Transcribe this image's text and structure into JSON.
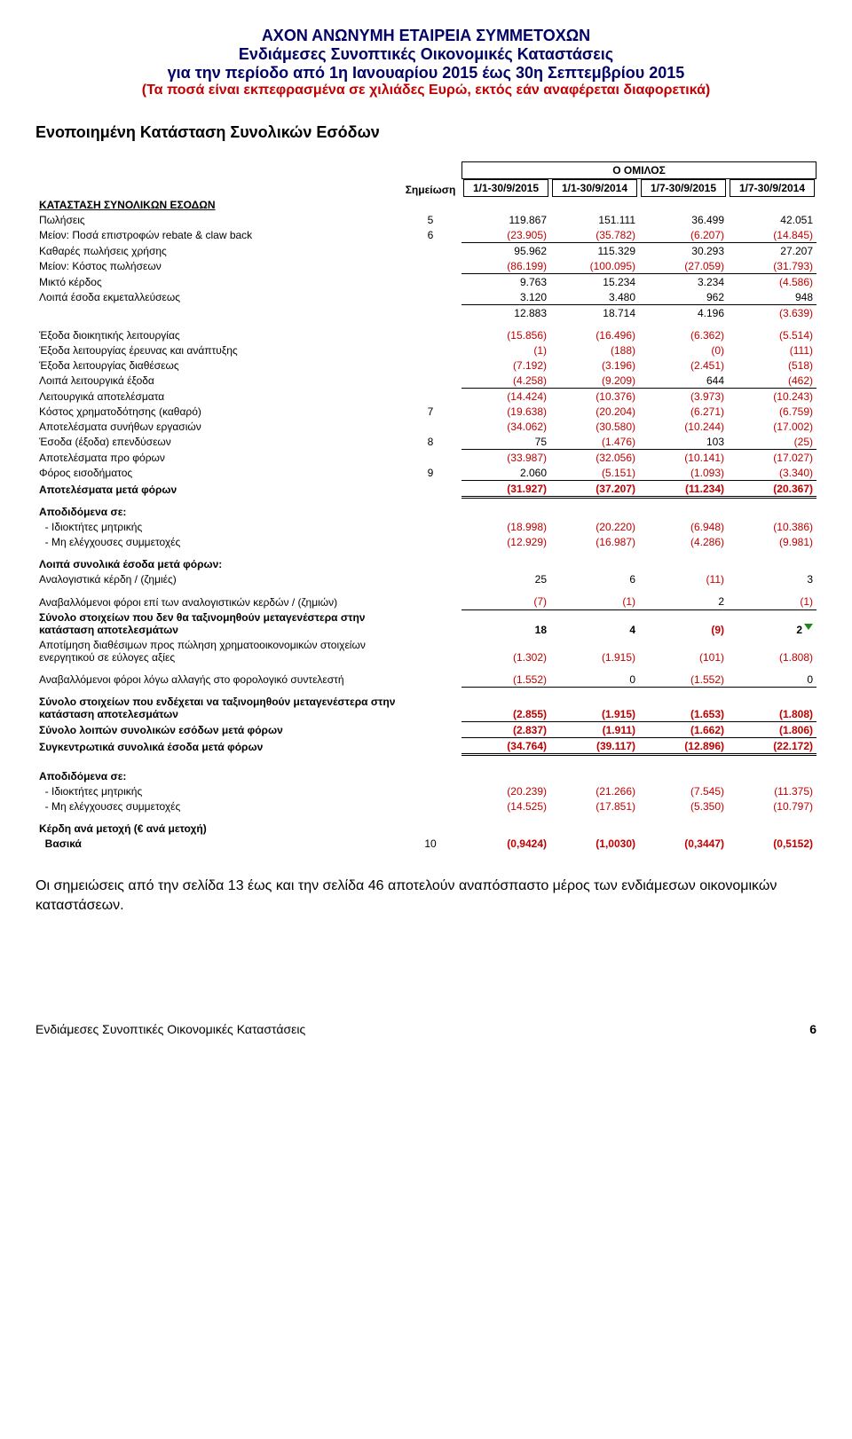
{
  "header": {
    "line1": "ΑΧΟΝ ΑΝΩΝΥΜΗ ΕΤΑΙΡΕΙΑ ΣΥΜΜΕΤΟΧΩΝ",
    "line2": "Ενδιάμεσες Συνοπτικές Οικονομικές Καταστάσεις",
    "line3": "για την περίοδο από 1η Ιανουαρίου 2015 έως 30η Σεπτεμβρίου 2015",
    "line4": "(Τα ποσά είναι εκπεφρασμένα σε χιλιάδες Ευρώ, εκτός εάν αναφέρεται διαφορετικά)"
  },
  "section_title": "Ενοποιημένη Κατάσταση Συνολικών Εσόδων",
  "group_label": "Ο ΟΜΙΛΟΣ",
  "note_header": "Σημείωση",
  "periods": [
    "1/1-30/9/2015",
    "1/1-30/9/2014",
    "1/7-30/9/2015",
    "1/7-30/9/2014"
  ],
  "heading_row": {
    "label": "ΚΑΤΑΣΤΑΣΗ ΣΥΝΟΛΙΚΩΝ ΕΣΟΔΩΝ"
  },
  "rows": [
    {
      "label": "Πωλήσεις",
      "note": "5",
      "v": [
        "119.867",
        "151.111",
        "36.499",
        "42.051"
      ],
      "neg": [
        0,
        0,
        0,
        0
      ]
    },
    {
      "label": "Μείον: Ποσά επιστροφών rebate & claw back",
      "note": "6",
      "v": [
        "(23.905)",
        "(35.782)",
        "(6.207)",
        "(14.845)"
      ],
      "neg": [
        1,
        1,
        1,
        1
      ],
      "ul": "single"
    },
    {
      "label": "Καθαρές πωλήσεις χρήσης",
      "v": [
        "95.962",
        "115.329",
        "30.293",
        "27.207"
      ],
      "neg": [
        0,
        0,
        0,
        0
      ]
    },
    {
      "label": "Μείον: Κόστος πωλήσεων",
      "v": [
        "(86.199)",
        "(100.095)",
        "(27.059)",
        "(31.793)"
      ],
      "neg": [
        1,
        1,
        1,
        1
      ],
      "ul": "single"
    },
    {
      "label": "Μικτό κέρδος",
      "v": [
        "9.763",
        "15.234",
        "3.234",
        "(4.586)"
      ],
      "neg": [
        0,
        0,
        0,
        1
      ]
    },
    {
      "label": "Λοιπά έσοδα εκμεταλλεύσεως",
      "v": [
        "3.120",
        "3.480",
        "962",
        "948"
      ],
      "neg": [
        0,
        0,
        0,
        0
      ],
      "ul": "single"
    },
    {
      "label": "",
      "v": [
        "12.883",
        "18.714",
        "4.196",
        "(3.639)"
      ],
      "neg": [
        0,
        0,
        0,
        1
      ]
    },
    {
      "spacer": true
    },
    {
      "label": "Έξοδα διοικητικής λειτουργίας",
      "v": [
        "(15.856)",
        "(16.496)",
        "(6.362)",
        "(5.514)"
      ],
      "neg": [
        1,
        1,
        1,
        1
      ]
    },
    {
      "label": "Έξοδα λειτουργίας έρευνας και ανάπτυξης",
      "v": [
        "(1)",
        "(188)",
        "(0)",
        "(111)"
      ],
      "neg": [
        1,
        1,
        1,
        1
      ]
    },
    {
      "label": "Έξοδα λειτουργίας διαθέσεως",
      "v": [
        "(7.192)",
        "(3.196)",
        "(2.451)",
        "(518)"
      ],
      "neg": [
        1,
        1,
        1,
        1
      ]
    },
    {
      "label": "Λοιπά λειτουργικά έξοδα",
      "v": [
        "(4.258)",
        "(9.209)",
        "644",
        "(462)"
      ],
      "neg": [
        1,
        1,
        0,
        1
      ],
      "ul": "single"
    },
    {
      "label": "Λειτουργικά αποτελέσματα",
      "v": [
        "(14.424)",
        "(10.376)",
        "(3.973)",
        "(10.243)"
      ],
      "neg": [
        1,
        1,
        1,
        1
      ]
    },
    {
      "label": "Κόστος χρηματοδότησης (καθαρό)",
      "note": "7",
      "v": [
        "(19.638)",
        "(20.204)",
        "(6.271)",
        "(6.759)"
      ],
      "neg": [
        1,
        1,
        1,
        1
      ]
    },
    {
      "label": "Αποτελέσματα συνήθων εργασιών",
      "v": [
        "(34.062)",
        "(30.580)",
        "(10.244)",
        "(17.002)"
      ],
      "neg": [
        1,
        1,
        1,
        1
      ]
    },
    {
      "label": "Έσοδα (έξοδα) επενδύσεων",
      "note": "8",
      "v": [
        "75",
        "(1.476)",
        "103",
        "(25)"
      ],
      "neg": [
        0,
        1,
        0,
        1
      ],
      "ul": "single"
    },
    {
      "label": "Αποτελέσματα προ φόρων",
      "v": [
        "(33.987)",
        "(32.056)",
        "(10.141)",
        "(17.027)"
      ],
      "neg": [
        1,
        1,
        1,
        1
      ]
    },
    {
      "label": "Φόρος εισοδήματος",
      "note": "9",
      "v": [
        "2.060",
        "(5.151)",
        "(1.093)",
        "(3.340)"
      ],
      "neg": [
        0,
        1,
        1,
        1
      ],
      "ul": "single"
    },
    {
      "label": "Αποτελέσματα μετά φόρων",
      "bold": true,
      "v": [
        "(31.927)",
        "(37.207)",
        "(11.234)",
        "(20.367)"
      ],
      "neg": [
        1,
        1,
        1,
        1
      ],
      "ul": "total"
    },
    {
      "spacer": true
    },
    {
      "label": "Αποδιδόμενα σε:",
      "bold": true
    },
    {
      "label": "  - Ιδιοκτήτες μητρικής",
      "v": [
        "(18.998)",
        "(20.220)",
        "(6.948)",
        "(10.386)"
      ],
      "neg": [
        1,
        1,
        1,
        1
      ]
    },
    {
      "label": "  - Μη ελέγχουσες συμμετοχές",
      "v": [
        "(12.929)",
        "(16.987)",
        "(4.286)",
        "(9.981)"
      ],
      "neg": [
        1,
        1,
        1,
        1
      ]
    },
    {
      "spacer": true
    },
    {
      "label": "Λοιπά συνολικά έσοδα μετά φόρων:",
      "bold": true
    },
    {
      "label": "Αναλογιστικά κέρδη / (ζημιές)",
      "v": [
        "25",
        "6",
        "(11)",
        "3"
      ],
      "neg": [
        0,
        0,
        1,
        0
      ]
    },
    {
      "spacer": true
    },
    {
      "label": "Αναβαλλόμενοι φόροι επί των αναλογιστικών κερδών / (ζημιών)",
      "v": [
        "(7)",
        "(1)",
        "2",
        "(1)"
      ],
      "neg": [
        1,
        1,
        0,
        1
      ],
      "ul": "single"
    },
    {
      "label": "Σύνολο στοιχείων που δεν θα ταξινομηθούν μεταγενέστερα στην κατάσταση αποτελεσμάτων",
      "bold": true,
      "v": [
        "18",
        "4",
        "(9)",
        "2"
      ],
      "neg": [
        0,
        0,
        1,
        0
      ],
      "tri": true
    },
    {
      "label": "Αποτίμηση διαθέσιμων προς πώληση χρηματοοικονομικών στοιχείων ενεργητικού σε εύλογες αξίες",
      "v": [
        "(1.302)",
        "(1.915)",
        "(101)",
        "(1.808)"
      ],
      "neg": [
        1,
        1,
        1,
        1
      ]
    },
    {
      "spacer": true
    },
    {
      "label": "Αναβαλλόμενοι φόροι λόγω αλλαγής στο φορολογικό συντελεστή",
      "v": [
        "(1.552)",
        "0",
        "(1.552)",
        "0"
      ],
      "neg": [
        1,
        0,
        1,
        0
      ],
      "ul": "single"
    },
    {
      "spacer": true
    },
    {
      "label": "Σύνολο στοιχείων που ενδέχεται να ταξινομηθούν μεταγενέστερα στην κατάσταση αποτελεσμάτων",
      "bold": true,
      "v": [
        "(2.855)",
        "(1.915)",
        "(1.653)",
        "(1.808)"
      ],
      "neg": [
        1,
        1,
        1,
        1
      ],
      "ul": "single"
    },
    {
      "label": "Σύνολο λοιπών συνολικών εσόδων μετά φόρων",
      "bold": true,
      "v": [
        "(2.837)",
        "(1.911)",
        "(1.662)",
        "(1.806)"
      ],
      "neg": [
        1,
        1,
        1,
        1
      ],
      "ul": "single"
    },
    {
      "label": "Συγκεντρωτικά συνολικά έσοδα μετά φόρων",
      "bold": true,
      "v": [
        "(34.764)",
        "(39.117)",
        "(12.896)",
        "(22.172)"
      ],
      "neg": [
        1,
        1,
        1,
        1
      ],
      "ul": "total"
    },
    {
      "big_spacer": true
    },
    {
      "label": "Αποδιδόμενα σε:",
      "bold": true
    },
    {
      "label": "  - Ιδιοκτήτες μητρικής",
      "v": [
        "(20.239)",
        "(21.266)",
        "(7.545)",
        "(11.375)"
      ],
      "neg": [
        1,
        1,
        1,
        1
      ]
    },
    {
      "label": "  - Μη ελέγχουσες συμμετοχές",
      "v": [
        "(14.525)",
        "(17.851)",
        "(5.350)",
        "(10.797)"
      ],
      "neg": [
        1,
        1,
        1,
        1
      ]
    },
    {
      "spacer": true
    },
    {
      "label": "Κέρδη ανά μετοχή (€ ανά μετοχή)",
      "bold": true
    },
    {
      "label": "  Βασικά",
      "note": "10",
      "v": [
        "(0,9424)",
        "(1,0030)",
        "(0,3447)",
        "(0,5152)"
      ],
      "neg": [
        1,
        1,
        1,
        1
      ],
      "bold": true
    }
  ],
  "footnote": "Οι σημειώσεις από την σελίδα 13 έως και την σελίδα 46 αποτελούν αναπόσπαστο μέρος των ενδιάμεσων οικονομικών καταστάσεων.",
  "footer_left": "Ενδιάμεσες  Συνοπτικές  Οικονομικές  Καταστάσεις",
  "footer_page": "6"
}
